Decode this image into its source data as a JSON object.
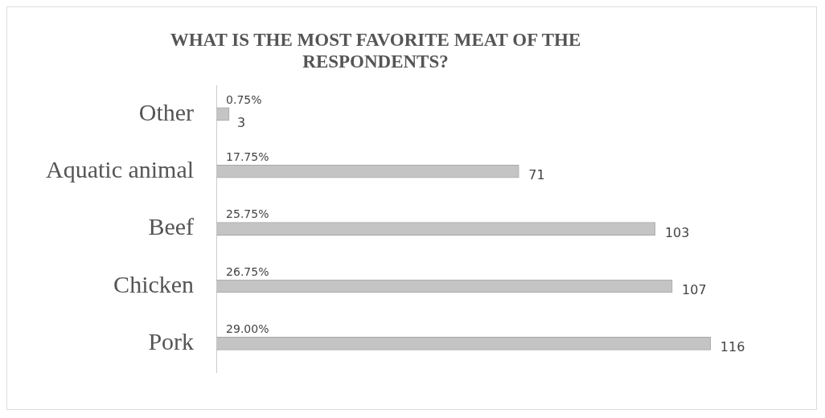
{
  "chart_data": {
    "type": "bar",
    "orientation": "horizontal",
    "title": "WHAT IS THE MOST FAVORITE MEAT OF THE RESPONDENTS?",
    "categories": [
      "Other",
      "Aquatic animal",
      "Beef",
      "Chicken",
      "Pork"
    ],
    "values": [
      3,
      71,
      103,
      107,
      116
    ],
    "color": "#c4c4c4",
    "tick_labels": "y",
    "grid": false,
    "legend": false,
    "data_labels": true,
    "annotations": [
      "0.75%",
      "17.75%",
      "25.75%",
      "26.75%",
      "29.00%"
    ]
  }
}
